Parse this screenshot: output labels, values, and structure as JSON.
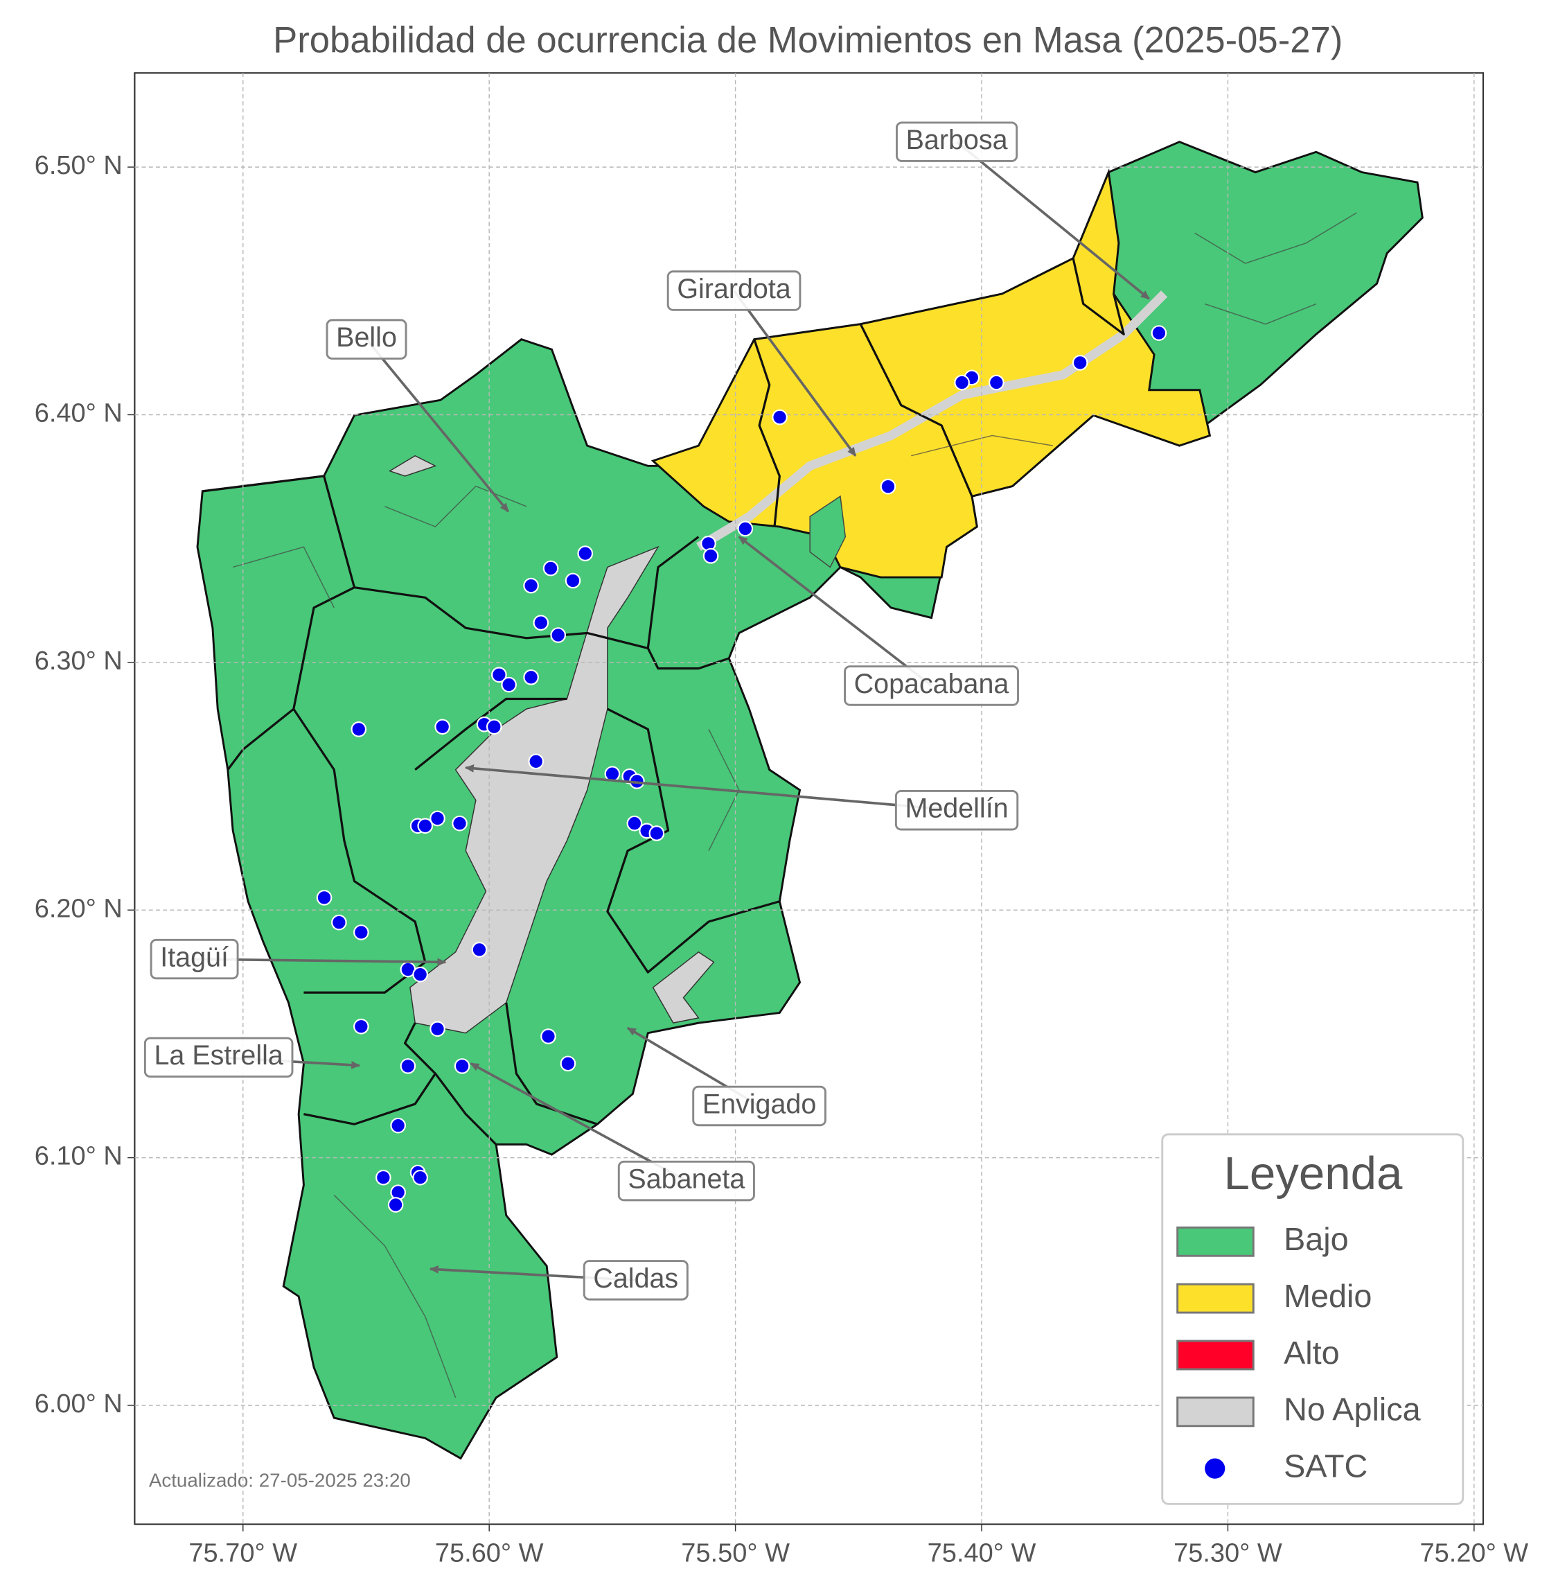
{
  "chart_data": {
    "type": "map",
    "title": "Probabilidad de ocurrencia de Movimientos en Masa (2025-05-27)",
    "xlim": [
      -75.744,
      -75.1963
    ],
    "ylim": [
      5.952,
      6.538
    ],
    "xticks": [
      {
        "value": -75.7,
        "label": "75.70° W"
      },
      {
        "value": -75.6,
        "label": "75.60° W"
      },
      {
        "value": -75.5,
        "label": "75.50° W"
      },
      {
        "value": -75.4,
        "label": "75.40° W"
      },
      {
        "value": -75.3,
        "label": "75.30° W"
      },
      {
        "value": -75.2,
        "label": "75.20° W"
      }
    ],
    "yticks": [
      {
        "value": 6.0,
        "label": "6.00° N"
      },
      {
        "value": 6.1,
        "label": "6.10° N"
      },
      {
        "value": 6.2,
        "label": "6.20° N"
      },
      {
        "value": 6.3,
        "label": "6.30° N"
      },
      {
        "value": 6.4,
        "label": "6.40° N"
      },
      {
        "value": 6.5,
        "label": "6.50° N"
      }
    ],
    "grid": true,
    "satc": {
      "name": "SATC",
      "color": "#0000ee",
      "lon": [
        -75.328,
        -75.36,
        -75.394,
        -75.404,
        -75.408,
        -75.482,
        -75.438,
        -75.496,
        -75.511,
        -75.51,
        -75.561,
        -75.575,
        -75.566,
        -75.583,
        -75.579,
        -75.572,
        -75.596,
        -75.592,
        -75.583,
        -75.653,
        -75.619,
        -75.602,
        -75.598,
        -75.581,
        -75.55,
        -75.543,
        -75.54,
        -75.541,
        -75.536,
        -75.532,
        -75.621,
        -75.629,
        -75.626,
        -75.612,
        -75.667,
        -75.661,
        -75.652,
        -75.604,
        -75.633,
        -75.628,
        -75.652,
        -75.621,
        -75.576,
        -75.568,
        -75.611,
        -75.633,
        -75.637,
        -75.643,
        -75.629,
        -75.628,
        -75.637,
        -75.638
      ],
      "lat": [
        6.433,
        6.421,
        6.413,
        6.415,
        6.413,
        6.399,
        6.371,
        6.354,
        6.348,
        6.343,
        6.344,
        6.338,
        6.333,
        6.331,
        6.316,
        6.311,
        6.295,
        6.291,
        6.294,
        6.273,
        6.274,
        6.275,
        6.274,
        6.26,
        6.255,
        6.254,
        6.252,
        6.235,
        6.232,
        6.231,
        6.237,
        6.234,
        6.234,
        6.235,
        6.205,
        6.195,
        6.191,
        6.184,
        6.176,
        6.174,
        6.153,
        6.152,
        6.149,
        6.138,
        6.137,
        6.137,
        6.113,
        6.092,
        6.094,
        6.092,
        6.086,
        6.081
      ]
    },
    "annotations": [
      "Barbosa",
      "Girardota",
      "Bello",
      "Copacabana",
      "Medellín",
      "Itagüí",
      "La Estrella",
      "Envigado",
      "Sabaneta",
      "Caldas"
    ],
    "legend": {
      "title": "Leyenda",
      "position": "lower right",
      "items": [
        {
          "label": "Bajo",
          "color": "#48c878"
        },
        {
          "label": "Medio",
          "color": "#fde02a"
        },
        {
          "label": "Alto",
          "color": "#ff0029"
        },
        {
          "label": "No Aplica",
          "color": "#d3d3d3"
        },
        {
          "label": "SATC",
          "color": "#0000ee"
        }
      ]
    },
    "footnote": "Actualizado: 27-05-2025 23:20"
  }
}
